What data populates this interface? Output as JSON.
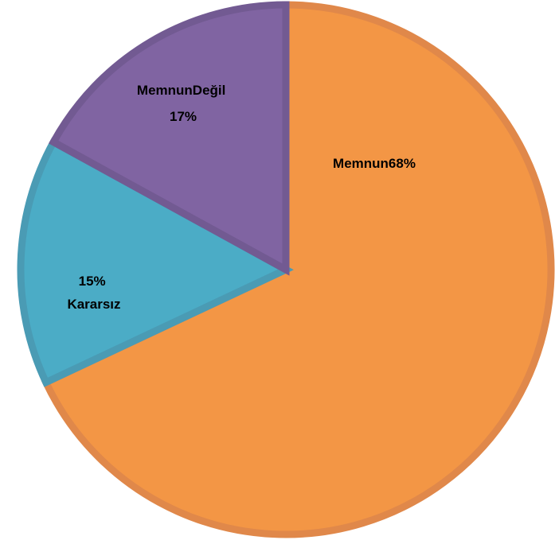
{
  "chart_data": {
    "type": "pie",
    "slices": [
      {
        "label": "Memnun",
        "value": 68,
        "value_text": "68%",
        "color": "#F39645",
        "border": "#E0884A"
      },
      {
        "label": "Kararsız",
        "value": 15,
        "value_text": "15%",
        "color": "#4BACC6",
        "border": "#4A9BB4"
      },
      {
        "label": "MemnunDeğil",
        "value": 17,
        "value_text": "17%",
        "color": "#8064A2",
        "border": "#725A92"
      }
    ],
    "start_angle_deg": 0,
    "direction": "clockwise"
  }
}
